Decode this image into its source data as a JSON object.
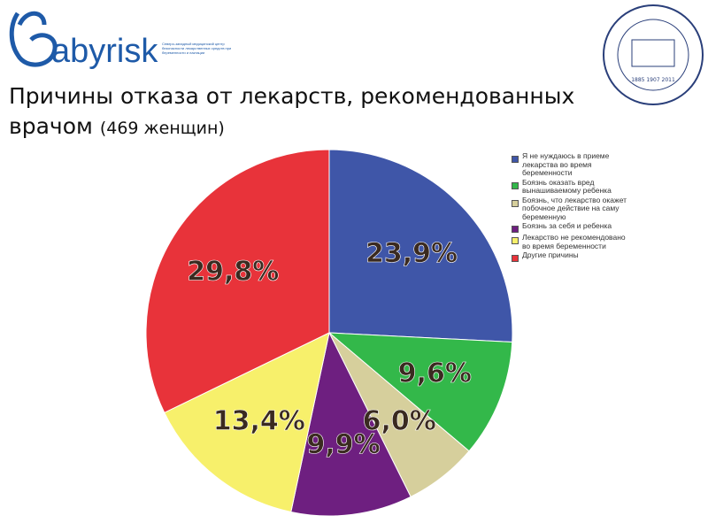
{
  "logo": {
    "text": "abyrisk",
    "subtitle": "Северо-западный медицинский центр безопасности лекарственных средств при беременности и лактации"
  },
  "seal": {
    "years": "1885 1907 2011"
  },
  "chart_data": {
    "type": "pie",
    "title": "Причины отказа от лекарств, рекомендованных врачом",
    "subtitle": "(469 женщин)",
    "categories": [
      "Я не нуждаюсь в приеме лекарства во время беременности",
      "Боязнь оказать вред вынашиваемому ребенка",
      "Боязнь, что лекарство окажет побочное действие на саму беременную",
      "Боязнь за себя и ребенка",
      "Лекарство не рекомендовано во время беременности",
      "Другие причины"
    ],
    "values": [
      23.9,
      9.6,
      6.0,
      9.9,
      13.4,
      29.8
    ],
    "value_labels": [
      "23,9%",
      "9,6%",
      "6,0%",
      "9,9%",
      "13,4%",
      "29,8%"
    ],
    "colors": [
      "#3f56a8",
      "#33b84a",
      "#d6cf9c",
      "#6e1f80",
      "#f7f06b",
      "#e8333a"
    ]
  }
}
